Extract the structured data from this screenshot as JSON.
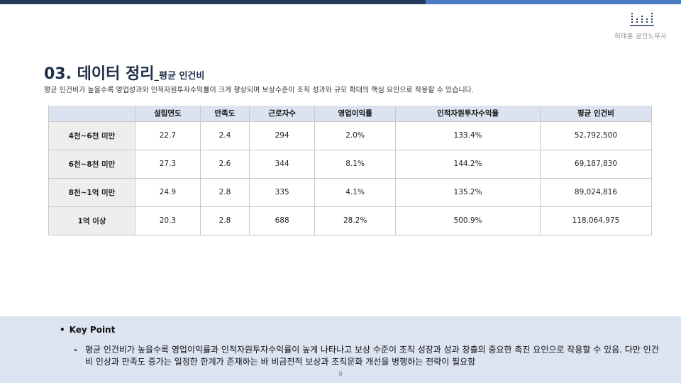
{
  "header": {
    "logo_text": "허태훈 공인노무사"
  },
  "title": {
    "main": "03. 데이터 정리",
    "sub": "_평균 인건비"
  },
  "description": "평균 인건비가 높을수록 영업성과와 인적자원투자수익률이 크게 향상되며 보상수준이 조직 성과와 규모 확대의 핵심 요인으로 작용할 수 있습니다.",
  "table": {
    "columns": [
      "설립연도",
      "만족도",
      "근로자수",
      "영업이익률",
      "인적자원투자수익율",
      "평균 인건비"
    ],
    "rows": [
      {
        "label": "4천~6천 미만",
        "cells": [
          "22.7",
          "2.4",
          "294",
          "2.0%",
          "133.4%",
          "52,792,500"
        ]
      },
      {
        "label": "6천~8천 미만",
        "cells": [
          "27.3",
          "2.6",
          "344",
          "8.1%",
          "144.2%",
          "69,187,830"
        ]
      },
      {
        "label": "8천~1억 미만",
        "cells": [
          "24.9",
          "2.8",
          "335",
          "4.1%",
          "135.2%",
          "89,024,816"
        ]
      },
      {
        "label": "1억 이상",
        "cells": [
          "20.3",
          "2.8",
          "688",
          "28.2%",
          "500.9%",
          "118,064,975"
        ]
      }
    ]
  },
  "key_point": {
    "bullet": "•",
    "title": "Key Point",
    "dash": "-",
    "text": "평균 인건비가 높을수록 영업이익률과 인적자원투자수익률이 높게 나타나고 보상 수준이 조직 성장과 성과 창출의 중요한 촉진 요인으로 작용할 수 있음. 다만 인건비 인상과 만족도 증가는 일정한 한계가 존재하는 바 비금전적 보상과 조직문화 개선을 병행하는 전략이 필요함"
  },
  "page_number": "9",
  "colors": {
    "topbar_dark": "#253a5c",
    "topbar_light": "#4a7cc4",
    "header_row": "#dbe3f1",
    "row_label": "#eeeeee",
    "key_panel": "#dce3f1"
  },
  "icons": {
    "logo": "bar-chart-logo-icon"
  }
}
